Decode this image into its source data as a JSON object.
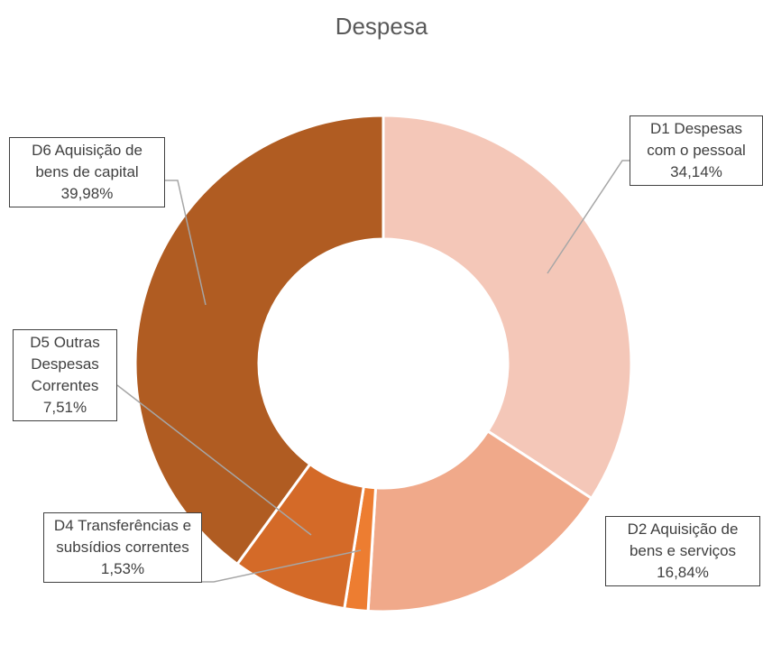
{
  "chart_data": {
    "type": "pie",
    "title": "Despesa",
    "categories": [
      "D1 Despesas com o pessoal",
      "D2 Aquisição de bens e serviços",
      "D4 Transferências e subsídios correntes",
      "D5 Outras Despesas Correntes",
      "D6 Aquisição de bens de capital"
    ],
    "values": [
      34.14,
      16.84,
      1.53,
      7.51,
      39.98
    ],
    "value_labels": [
      "34,14%",
      "16,84%",
      "1,53%",
      "7,51%",
      "39,98%"
    ],
    "colors": [
      "#f4c7b8",
      "#f0a98a",
      "#ed7d31",
      "#d46a28",
      "#b05c22"
    ]
  }
}
